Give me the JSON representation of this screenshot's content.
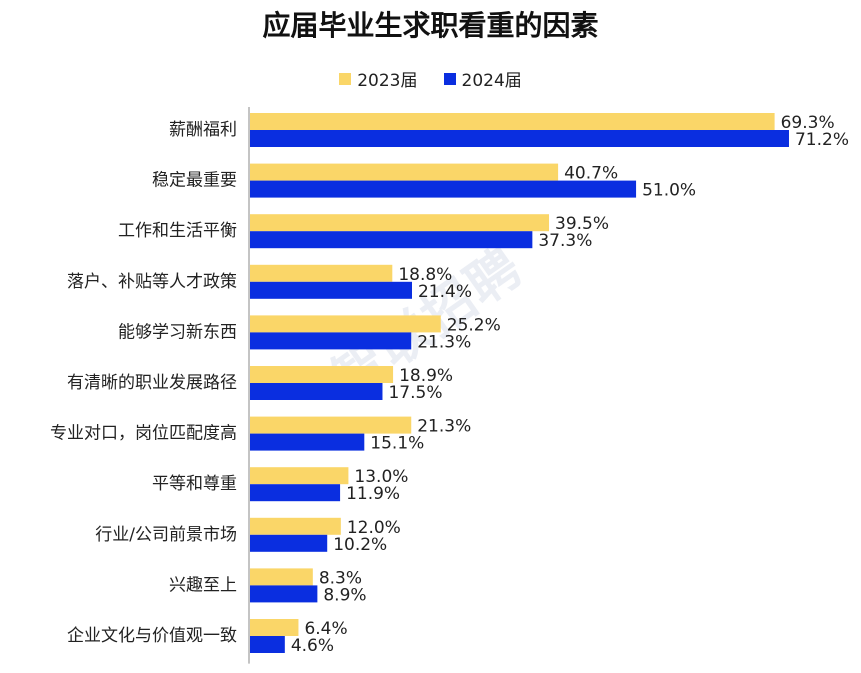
{
  "title": "应届毕业生求职看重的因素",
  "watermark": "智联招聘",
  "colors": {
    "s2023": "#FAD668",
    "s2024": "#0A2EE0",
    "axis": "#888888"
  },
  "chart_data": {
    "type": "bar",
    "orientation": "horizontal",
    "title": "应届毕业生求职看重的因素",
    "legend_position": "top",
    "value_format": "percent, one decimal",
    "xlim": [
      0,
      75
    ],
    "categories": [
      "薪酬福利",
      "稳定最重要",
      "工作和生活平衡",
      "落户、补贴等人才政策",
      "能够学习新东西",
      "有清晰的职业发展路径",
      "专业对口，岗位匹配度高",
      "平等和尊重",
      "行业/公司前景市场",
      "兴趣至上",
      "企业文化与价值观一致"
    ],
    "series": [
      {
        "name": "2023届",
        "color": "#FAD668",
        "values": [
          69.3,
          40.7,
          39.5,
          18.8,
          25.2,
          18.9,
          21.3,
          13.0,
          12.0,
          8.3,
          6.4
        ]
      },
      {
        "name": "2024届",
        "color": "#0A2EE0",
        "values": [
          71.2,
          51.0,
          37.3,
          21.4,
          21.3,
          17.5,
          15.1,
          11.9,
          10.2,
          8.9,
          4.6
        ]
      }
    ]
  }
}
